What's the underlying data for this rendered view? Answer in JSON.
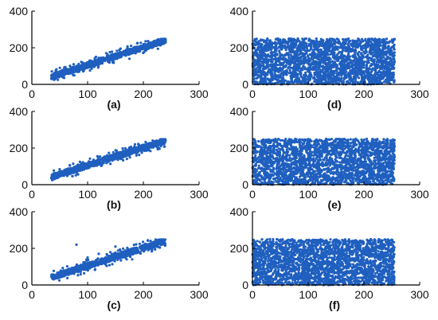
{
  "chart_data": [
    {
      "type": "scatter",
      "label": "(a)",
      "xlim": [
        0,
        300
      ],
      "ylim": [
        0,
        400
      ],
      "xticks": [
        "0",
        "100",
        "200",
        "300"
      ],
      "yticks": [
        "0",
        "200",
        "400"
      ],
      "x": [
        38,
        45,
        52,
        58,
        64,
        70,
        76,
        82,
        88,
        95,
        102,
        110,
        118,
        126,
        134,
        142,
        150,
        158,
        166,
        174,
        182,
        190,
        198,
        206,
        214,
        222,
        230,
        238,
        60,
        75,
        90,
        105,
        120,
        135,
        150,
        165,
        180,
        195,
        210,
        225,
        55,
        85,
        115,
        145,
        175,
        205,
        235,
        66,
        96,
        126,
        156,
        186,
        216
      ],
      "y": [
        45,
        52,
        58,
        68,
        72,
        80,
        85,
        92,
        98,
        104,
        110,
        118,
        125,
        132,
        140,
        146,
        152,
        160,
        168,
        175,
        182,
        190,
        198,
        205,
        212,
        220,
        228,
        236,
        95,
        110,
        120,
        130,
        145,
        155,
        168,
        175,
        188,
        200,
        210,
        225,
        40,
        70,
        150,
        120,
        140,
        185,
        232,
        60,
        88,
        115,
        160,
        170,
        200
      ]
    },
    {
      "type": "scatter",
      "label": "(b)",
      "xlim": [
        0,
        300
      ],
      "ylim": [
        0,
        400
      ],
      "xticks": [
        "0",
        "100",
        "200",
        "300"
      ],
      "yticks": [
        "0",
        "200",
        "400"
      ],
      "x": [
        36,
        42,
        48,
        54,
        60,
        66,
        72,
        78,
        84,
        90,
        96,
        102,
        108,
        114,
        120,
        128,
        136,
        144,
        152,
        160,
        168,
        176,
        184,
        192,
        200,
        208,
        216,
        224,
        232,
        240,
        70,
        95,
        118,
        140,
        165,
        190,
        212
      ],
      "y": [
        42,
        48,
        55,
        60,
        66,
        72,
        78,
        84,
        90,
        96,
        102,
        108,
        114,
        120,
        126,
        134,
        142,
        150,
        158,
        166,
        174,
        182,
        190,
        198,
        206,
        214,
        222,
        230,
        236,
        242,
        90,
        110,
        135,
        160,
        180,
        200,
        225
      ]
    },
    {
      "type": "scatter",
      "label": "(c)",
      "xlim": [
        0,
        300
      ],
      "ylim": [
        0,
        400
      ],
      "xticks": [
        "0",
        "100",
        "200",
        "300"
      ],
      "yticks": [
        "0",
        "200",
        "400"
      ],
      "x": [
        40,
        46,
        52,
        58,
        64,
        70,
        76,
        82,
        88,
        94,
        100,
        108,
        116,
        124,
        132,
        140,
        148,
        156,
        164,
        172,
        180,
        188,
        196,
        204,
        212,
        220,
        228,
        236,
        80,
        100,
        120,
        150,
        180,
        210
      ],
      "y": [
        48,
        56,
        62,
        70,
        78,
        86,
        90,
        96,
        102,
        108,
        114,
        122,
        130,
        138,
        146,
        154,
        162,
        170,
        178,
        186,
        194,
        202,
        210,
        218,
        226,
        232,
        238,
        240,
        220,
        150,
        170,
        210,
        140,
        195
      ]
    },
    {
      "type": "scatter",
      "label": "(d)",
      "xlim": [
        0,
        300
      ],
      "ylim": [
        0,
        400
      ],
      "xticks": [
        "0",
        "100",
        "200",
        "300"
      ],
      "yticks": [
        "0",
        "200",
        "400"
      ],
      "x_range": [
        0,
        255
      ],
      "y_range": [
        0,
        250
      ]
    },
    {
      "type": "scatter",
      "label": "(e)",
      "xlim": [
        0,
        300
      ],
      "ylim": [
        0,
        400
      ],
      "xticks": [
        "0",
        "100",
        "200",
        "300"
      ],
      "yticks": [
        "0",
        "200",
        "400"
      ],
      "x_range": [
        0,
        255
      ],
      "y_range": [
        0,
        250
      ]
    },
    {
      "type": "scatter",
      "label": "(f)",
      "xlim": [
        0,
        300
      ],
      "ylim": [
        0,
        400
      ],
      "xticks": [
        "0",
        "100",
        "200",
        "300"
      ],
      "yticks": [
        "0",
        "200",
        "400"
      ],
      "x_range": [
        0,
        255
      ],
      "y_range": [
        0,
        250
      ]
    }
  ],
  "colors": {
    "points": "#1f5fbf",
    "axis": "#000000"
  }
}
